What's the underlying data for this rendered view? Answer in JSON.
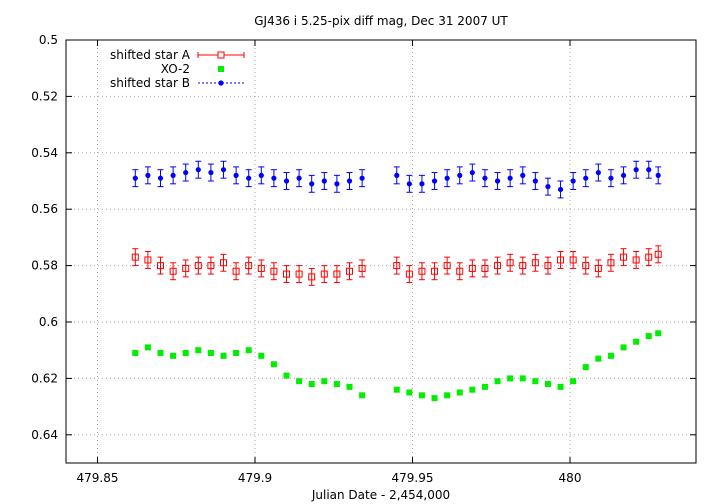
{
  "chart_data": {
    "type": "scatter",
    "title": "GJ436 i 5.25-pix diff mag, Dec 31 2007 UT",
    "xlabel": "Julian Date - 2,454,000",
    "ylabel": "",
    "xlim": [
      479.84,
      480.04
    ],
    "ylim": [
      0.5,
      0.65
    ],
    "y_inverted": true,
    "grid": "dotted",
    "legend_position": "top-left",
    "xticks": [
      {
        "value": 479.85,
        "label": "479.85"
      },
      {
        "value": 479.9,
        "label": "479.9"
      },
      {
        "value": 479.95,
        "label": "479.95"
      },
      {
        "value": 480.0,
        "label": "480"
      }
    ],
    "yticks": [
      {
        "value": 0.5,
        "label": "0.5"
      },
      {
        "value": 0.52,
        "label": "0.52"
      },
      {
        "value": 0.54,
        "label": "0.54"
      },
      {
        "value": 0.56,
        "label": "0.56"
      },
      {
        "value": 0.58,
        "label": "0.58"
      },
      {
        "value": 0.6,
        "label": "0.6"
      },
      {
        "value": 0.62,
        "label": "0.62"
      },
      {
        "value": 0.64,
        "label": "0.64"
      }
    ],
    "series": [
      {
        "name": "shifted star A",
        "color": "#ff0000",
        "marker": "open-square",
        "error": 0.003,
        "x": [
          479.862,
          479.866,
          479.87,
          479.874,
          479.878,
          479.882,
          479.886,
          479.89,
          479.894,
          479.898,
          479.902,
          479.906,
          479.91,
          479.914,
          479.918,
          479.922,
          479.926,
          479.93,
          479.934,
          479.945,
          479.949,
          479.953,
          479.957,
          479.961,
          479.965,
          479.969,
          479.973,
          479.977,
          479.981,
          479.985,
          479.989,
          479.993,
          479.997,
          480.001,
          480.005,
          480.009,
          480.013,
          480.017,
          480.021,
          480.025,
          480.028
        ],
        "y": [
          0.577,
          0.578,
          0.58,
          0.582,
          0.581,
          0.58,
          0.58,
          0.579,
          0.582,
          0.58,
          0.581,
          0.582,
          0.583,
          0.583,
          0.584,
          0.583,
          0.583,
          0.582,
          0.581,
          0.58,
          0.583,
          0.582,
          0.582,
          0.58,
          0.582,
          0.581,
          0.581,
          0.58,
          0.579,
          0.58,
          0.579,
          0.58,
          0.578,
          0.578,
          0.58,
          0.581,
          0.579,
          0.577,
          0.578,
          0.577,
          0.576
        ]
      },
      {
        "name": "XO-2",
        "color": "#00ee00",
        "marker": "filled-square",
        "x": [
          479.862,
          479.866,
          479.87,
          479.874,
          479.878,
          479.882,
          479.886,
          479.89,
          479.894,
          479.898,
          479.902,
          479.906,
          479.91,
          479.914,
          479.918,
          479.922,
          479.926,
          479.93,
          479.934,
          479.945,
          479.949,
          479.953,
          479.957,
          479.961,
          479.965,
          479.969,
          479.973,
          479.977,
          479.981,
          479.985,
          479.989,
          479.993,
          479.997,
          480.001,
          480.005,
          480.009,
          480.013,
          480.017,
          480.021,
          480.025,
          480.028
        ],
        "y": [
          0.611,
          0.609,
          0.611,
          0.612,
          0.611,
          0.61,
          0.611,
          0.612,
          0.611,
          0.61,
          0.612,
          0.615,
          0.619,
          0.621,
          0.622,
          0.621,
          0.622,
          0.623,
          0.626,
          0.624,
          0.625,
          0.626,
          0.627,
          0.626,
          0.625,
          0.624,
          0.623,
          0.621,
          0.62,
          0.62,
          0.621,
          0.622,
          0.623,
          0.621,
          0.616,
          0.613,
          0.612,
          0.609,
          0.607,
          0.605,
          0.604
        ]
      },
      {
        "name": "shifted star B",
        "color": "#0000ff",
        "marker": "filled-circle",
        "error": 0.003,
        "x": [
          479.862,
          479.866,
          479.87,
          479.874,
          479.878,
          479.882,
          479.886,
          479.89,
          479.894,
          479.898,
          479.902,
          479.906,
          479.91,
          479.914,
          479.918,
          479.922,
          479.926,
          479.93,
          479.934,
          479.945,
          479.949,
          479.953,
          479.957,
          479.961,
          479.965,
          479.969,
          479.973,
          479.977,
          479.981,
          479.985,
          479.989,
          479.993,
          479.997,
          480.001,
          480.005,
          480.009,
          480.013,
          480.017,
          480.021,
          480.025,
          480.028
        ],
        "y": [
          0.549,
          0.548,
          0.549,
          0.548,
          0.547,
          0.546,
          0.547,
          0.546,
          0.548,
          0.549,
          0.548,
          0.549,
          0.55,
          0.549,
          0.551,
          0.55,
          0.551,
          0.55,
          0.549,
          0.548,
          0.551,
          0.551,
          0.55,
          0.549,
          0.548,
          0.547,
          0.549,
          0.55,
          0.549,
          0.548,
          0.55,
          0.552,
          0.553,
          0.55,
          0.549,
          0.547,
          0.549,
          0.548,
          0.546,
          0.546,
          0.548
        ]
      }
    ]
  }
}
